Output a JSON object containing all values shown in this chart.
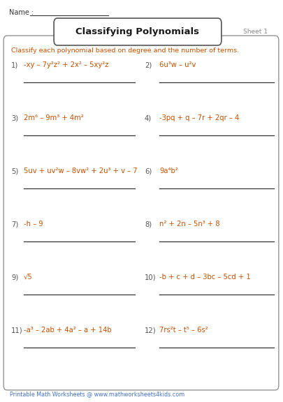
{
  "title": "Classifying Polynomials",
  "sheet": "Sheet 1",
  "name_label": "Name : ",
  "instruction": "Classify each polynomial based on degree and the number of terms.",
  "footer": "Printable Math Worksheets @ www.mathworksheets4kids.com",
  "problems_left": [
    {
      "num": "1)",
      "expr": "-xy – 7y²z² + 2x² – 5xy²z"
    },
    {
      "num": "3)",
      "expr": "2m⁶ – 9m³ + 4m²"
    },
    {
      "num": "5)",
      "expr": "5uv + uv²w – 8vw² + 2u³ + v – 7"
    },
    {
      "num": "7)",
      "expr": "-h – 9"
    },
    {
      "num": "9)",
      "expr": "√5"
    },
    {
      "num": "11)",
      "expr": "-a³ – 2ab + 4a² – a + 14b"
    }
  ],
  "problems_right": [
    {
      "num": "2)",
      "expr": "6u³w – u²v"
    },
    {
      "num": "4)",
      "expr": "-3pq + q – 7r + 2qr – 4"
    },
    {
      "num": "6)",
      "expr": "9a⁴b²"
    },
    {
      "num": "8)",
      "expr": "n² + 2n – 5n³ + 8"
    },
    {
      "num": "10)",
      "expr": "-b + c + d – 3bc – 5cd + 1"
    },
    {
      "num": "12)",
      "expr": "7rs²t – t⁵ – 6s²"
    }
  ],
  "title_color": "#1a1a1a",
  "instruction_color": "#c85000",
  "expr_color": "#c85000",
  "num_color": "#555555",
  "sheet_color": "#888888",
  "footer_color": "#4472c4",
  "bg_color": "#ffffff",
  "line_color": "#333333",
  "name_color": "#333333",
  "title_box_edge": "#555555"
}
